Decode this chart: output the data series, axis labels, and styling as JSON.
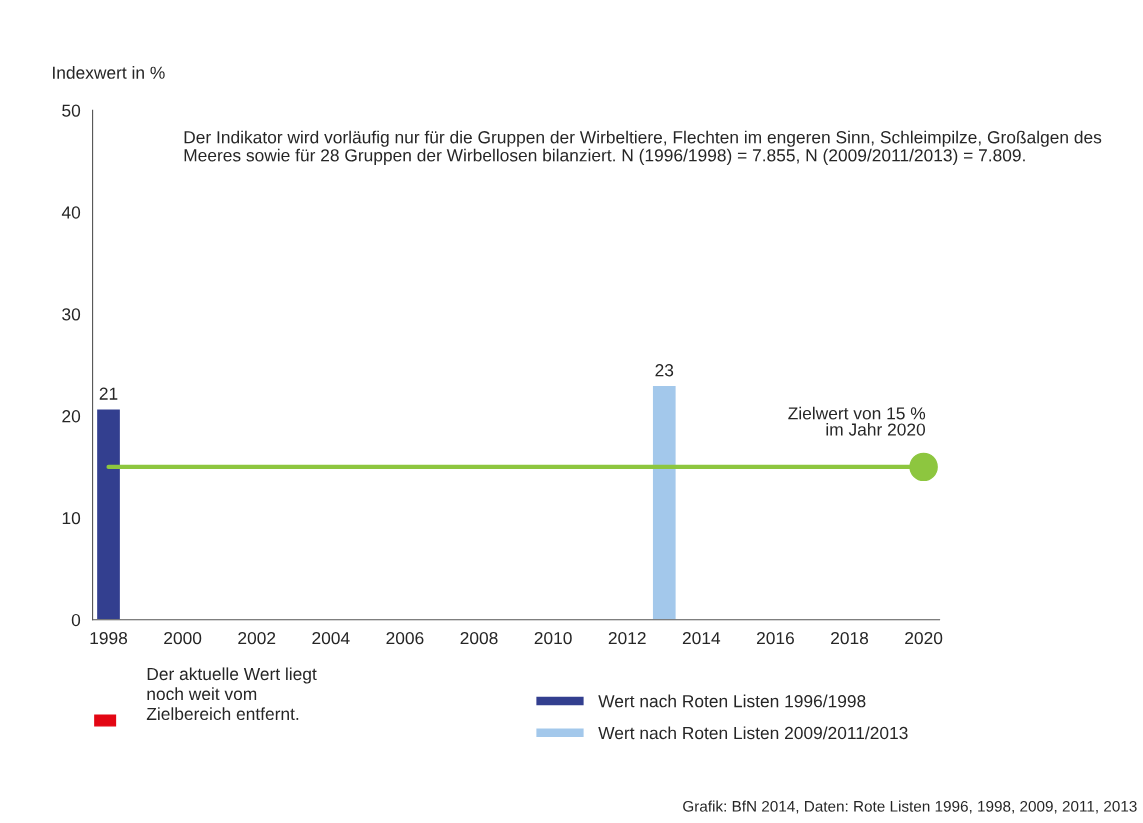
{
  "chart_data": {
    "type": "bar",
    "ylabel": "Indexwert in %",
    "xlim": [
      1997.57,
      2020.43
    ],
    "xticks": [
      1998,
      2000,
      2002,
      2004,
      2006,
      2008,
      2010,
      2012,
      2014,
      2016,
      2018,
      2020
    ],
    "ylim": [
      0,
      50
    ],
    "yticks": [
      0,
      10,
      20,
      30,
      40,
      50
    ],
    "series": [
      {
        "name": "Wert nach Roten Listen 1996/1998",
        "color": "#333f8f",
        "x": [
          1998
        ],
        "values": [
          20.7
        ],
        "value_labels": [
          "21"
        ]
      },
      {
        "name": "Wert nach Roten Listen 2009/2011/2013",
        "color": "#a3c8eb",
        "x": [
          2013
        ],
        "values": [
          23.0
        ],
        "value_labels": [
          "23"
        ]
      },
      {
        "type": "line",
        "color": "#8dc63f",
        "x": [
          1998,
          2020
        ],
        "values": [
          15,
          15
        ]
      },
      {
        "type": "scatter",
        "color": "#8dc63f",
        "x": [
          2020
        ],
        "values": [
          15
        ]
      }
    ],
    "annotations": [
      "Der Indikator wird vorläufig nur für die Gruppen der Wirbeltiere, Flechten im engeren Sinn, Schleimpilze, Großalgen des Meeres sowie für 28 Gruppen der Wirbellosen bilanziert. N (1996/1998) = 7.855, N (2009/2011/2013) = 7.809.",
      {
        "text": "Zielwert von 15 %\nim Jahr 2020",
        "x": 2020,
        "y": 15
      },
      "Der aktuelle Wert liegt\nnoch weit vom\nZielbereich entfernt.",
      "Grafik: BfN 2014, Daten: Rote Listen 1996, 1998, 2009, 2011, 2013"
    ],
    "grid": false,
    "legend": "bottom"
  }
}
